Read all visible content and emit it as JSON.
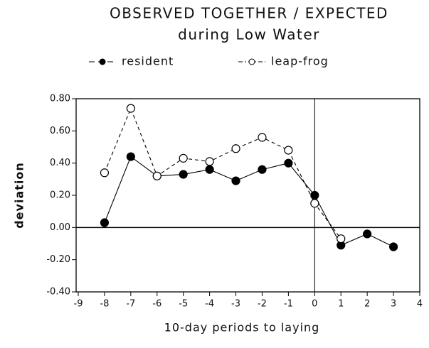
{
  "chart_data": {
    "type": "line",
    "title": "OBSERVED TOGETHER / EXPECTED",
    "subtitle": "during Low Water",
    "xlabel": "10-day periods to laying",
    "ylabel": "deviation",
    "x": [
      -8,
      -7,
      -6,
      -5,
      -4,
      -3,
      -2,
      -1,
      0,
      1,
      2,
      3
    ],
    "series": [
      {
        "name": "resident",
        "color": "#000000",
        "marker": "filled",
        "style": "solid",
        "values": [
          0.03,
          0.44,
          0.32,
          0.33,
          0.36,
          0.29,
          0.36,
          0.4,
          0.2,
          -0.11,
          -0.04,
          -0.12
        ]
      },
      {
        "name": "leap-frog",
        "color": "#000000",
        "marker": "open",
        "style": "dashed",
        "values": [
          0.34,
          0.74,
          0.32,
          0.43,
          0.41,
          0.49,
          0.56,
          0.48,
          0.15,
          -0.07,
          null,
          null
        ]
      }
    ],
    "xlim": [
      -9,
      4
    ],
    "xticks": [
      -9,
      -8,
      -7,
      -6,
      -5,
      -4,
      -3,
      -2,
      -1,
      0,
      1,
      2,
      3,
      4
    ],
    "ylim": [
      -0.4,
      0.8
    ],
    "yticks": [
      {
        "value": -0.4,
        "label": "-0.40"
      },
      {
        "value": -0.2,
        "label": "-0.20"
      },
      {
        "value": 0,
        "label": "0.00"
      },
      {
        "value": 0.2,
        "label": "0.20"
      },
      {
        "value": 0.4,
        "label": "0.40"
      },
      {
        "value": 0.6,
        "label": "0.60"
      },
      {
        "value": 0.8,
        "label": "0.80"
      }
    ],
    "legend": "top",
    "grid": false
  }
}
